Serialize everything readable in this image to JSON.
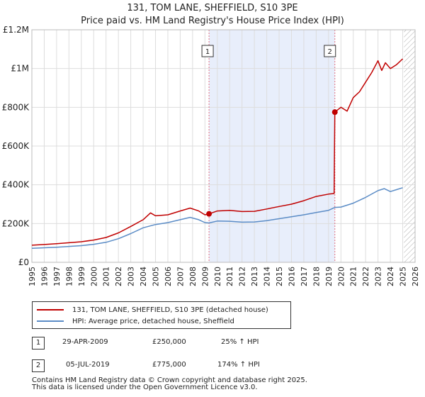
{
  "title_line1": "131, TOM LANE, SHEFFIELD, S10 3PE",
  "title_line2": "Price paid vs. HM Land Registry's House Price Index (HPI)",
  "colors": {
    "property": "#c00000",
    "hpi": "#5b8cc6",
    "shade": "#e8eefb",
    "vline": "#e07080"
  },
  "chart_data": {
    "type": "line",
    "xlim": [
      1995,
      2026
    ],
    "ylim": [
      0,
      1200000
    ],
    "x_ticks": [
      "1995",
      "1996",
      "1997",
      "1998",
      "1999",
      "2000",
      "2001",
      "2002",
      "2003",
      "2004",
      "2005",
      "2006",
      "2007",
      "2008",
      "2009",
      "2010",
      "2011",
      "2012",
      "2013",
      "2014",
      "2015",
      "2016",
      "2017",
      "2018",
      "2019",
      "2020",
      "2021",
      "2022",
      "2023",
      "2024",
      "2025",
      "2026"
    ],
    "y_ticks": [
      {
        "value": 0,
        "label": "£0"
      },
      {
        "value": 200000,
        "label": "£200K"
      },
      {
        "value": 400000,
        "label": "£400K"
      },
      {
        "value": 600000,
        "label": "£600K"
      },
      {
        "value": 800000,
        "label": "£800K"
      },
      {
        "value": 1000000,
        "label": "£1M"
      },
      {
        "value": 1200000,
        "label": "£1.2M"
      }
    ],
    "shaded_range": [
      2009.33,
      2019.51
    ],
    "future_hatch_from": 2025.1,
    "series": [
      {
        "name": "131, TOM LANE, SHEFFIELD, S10 3PE (detached house)",
        "color": "#c00000",
        "points": [
          [
            1995,
            88000
          ],
          [
            1996,
            92000
          ],
          [
            1997,
            96000
          ],
          [
            1998,
            101000
          ],
          [
            1999,
            106000
          ],
          [
            2000,
            115000
          ],
          [
            2001,
            128000
          ],
          [
            2002,
            152000
          ],
          [
            2003,
            185000
          ],
          [
            2004,
            220000
          ],
          [
            2004.6,
            255000
          ],
          [
            2005,
            240000
          ],
          [
            2006,
            245000
          ],
          [
            2007,
            265000
          ],
          [
            2007.8,
            280000
          ],
          [
            2008.5,
            265000
          ],
          [
            2009,
            245000
          ],
          [
            2009.33,
            250000
          ],
          [
            2010,
            265000
          ],
          [
            2011,
            268000
          ],
          [
            2012,
            262000
          ],
          [
            2013,
            263000
          ],
          [
            2014,
            275000
          ],
          [
            2015,
            288000
          ],
          [
            2016,
            300000
          ],
          [
            2017,
            318000
          ],
          [
            2018,
            340000
          ],
          [
            2019,
            352000
          ],
          [
            2019.45,
            355000
          ],
          [
            2019.51,
            775000
          ],
          [
            2020,
            800000
          ],
          [
            2020.5,
            780000
          ],
          [
            2021,
            850000
          ],
          [
            2021.5,
            880000
          ],
          [
            2022,
            930000
          ],
          [
            2022.5,
            980000
          ],
          [
            2023,
            1040000
          ],
          [
            2023.3,
            990000
          ],
          [
            2023.6,
            1030000
          ],
          [
            2024,
            1000000
          ],
          [
            2024.5,
            1020000
          ],
          [
            2025,
            1050000
          ]
        ]
      },
      {
        "name": "HPI: Average price, detached house, Sheffield",
        "color": "#5b8cc6",
        "points": [
          [
            1995,
            72000
          ],
          [
            1996,
            75000
          ],
          [
            1997,
            78000
          ],
          [
            1998,
            82000
          ],
          [
            1999,
            86000
          ],
          [
            2000,
            93000
          ],
          [
            2001,
            103000
          ],
          [
            2002,
            122000
          ],
          [
            2003,
            148000
          ],
          [
            2004,
            178000
          ],
          [
            2005,
            195000
          ],
          [
            2006,
            205000
          ],
          [
            2007,
            220000
          ],
          [
            2007.8,
            232000
          ],
          [
            2008.5,
            220000
          ],
          [
            2009,
            205000
          ],
          [
            2009.33,
            203000
          ],
          [
            2010,
            213000
          ],
          [
            2011,
            212000
          ],
          [
            2012,
            207000
          ],
          [
            2013,
            208000
          ],
          [
            2014,
            215000
          ],
          [
            2015,
            225000
          ],
          [
            2016,
            235000
          ],
          [
            2017,
            245000
          ],
          [
            2018,
            257000
          ],
          [
            2019,
            268000
          ],
          [
            2019.51,
            283000
          ],
          [
            2020,
            285000
          ],
          [
            2021,
            305000
          ],
          [
            2022,
            335000
          ],
          [
            2023,
            370000
          ],
          [
            2023.5,
            380000
          ],
          [
            2024,
            365000
          ],
          [
            2024.5,
            375000
          ],
          [
            2025,
            385000
          ]
        ]
      }
    ],
    "sales": [
      {
        "id": "1",
        "x": 2009.33,
        "y": 250000
      },
      {
        "id": "2",
        "x": 2019.51,
        "y": 775000
      }
    ]
  },
  "legend": [
    {
      "label": "131, TOM LANE, SHEFFIELD, S10 3PE (detached house)",
      "color": "#c00000"
    },
    {
      "label": "HPI: Average price, detached house, Sheffield",
      "color": "#5b8cc6"
    }
  ],
  "table": [
    {
      "num": "1",
      "date": "29-APR-2009",
      "price": "£250,000",
      "hpi": "25% ↑ HPI"
    },
    {
      "num": "2",
      "date": "05-JUL-2019",
      "price": "£775,000",
      "hpi": "174% ↑ HPI"
    }
  ],
  "footer_line1": "Contains HM Land Registry data © Crown copyright and database right 2025.",
  "footer_line2": "This data is licensed under the Open Government Licence v3.0."
}
